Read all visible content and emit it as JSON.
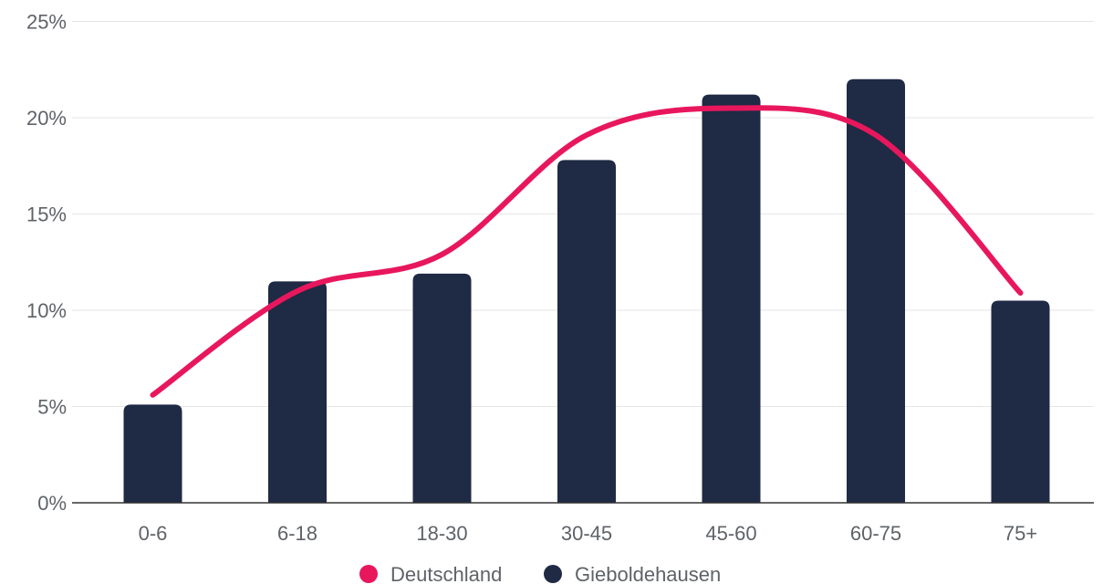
{
  "chart_data": {
    "type": "bar",
    "categories": [
      "0-6",
      "6-18",
      "18-30",
      "30-45",
      "45-60",
      "60-75",
      "75+"
    ],
    "series": [
      {
        "name": "Gieboldehausen",
        "type": "bar",
        "color": "#1f2a44",
        "values": [
          5.1,
          11.5,
          11.9,
          17.8,
          21.2,
          22.0,
          10.5
        ]
      },
      {
        "name": "Deutschland",
        "type": "line",
        "color": "#e8175d",
        "values": [
          5.6,
          11.0,
          12.9,
          19.1,
          20.5,
          19.1,
          10.9
        ]
      }
    ],
    "yticks": [
      "0%",
      "5%",
      "10%",
      "15%",
      "20%",
      "25%"
    ],
    "ylim": [
      0,
      25
    ],
    "grid": true,
    "legend_position": "bottom-center",
    "legend": [
      {
        "label": "Deutschland",
        "color": "#e8175d"
      },
      {
        "label": "Gieboldehausen",
        "color": "#1f2a44"
      }
    ]
  }
}
